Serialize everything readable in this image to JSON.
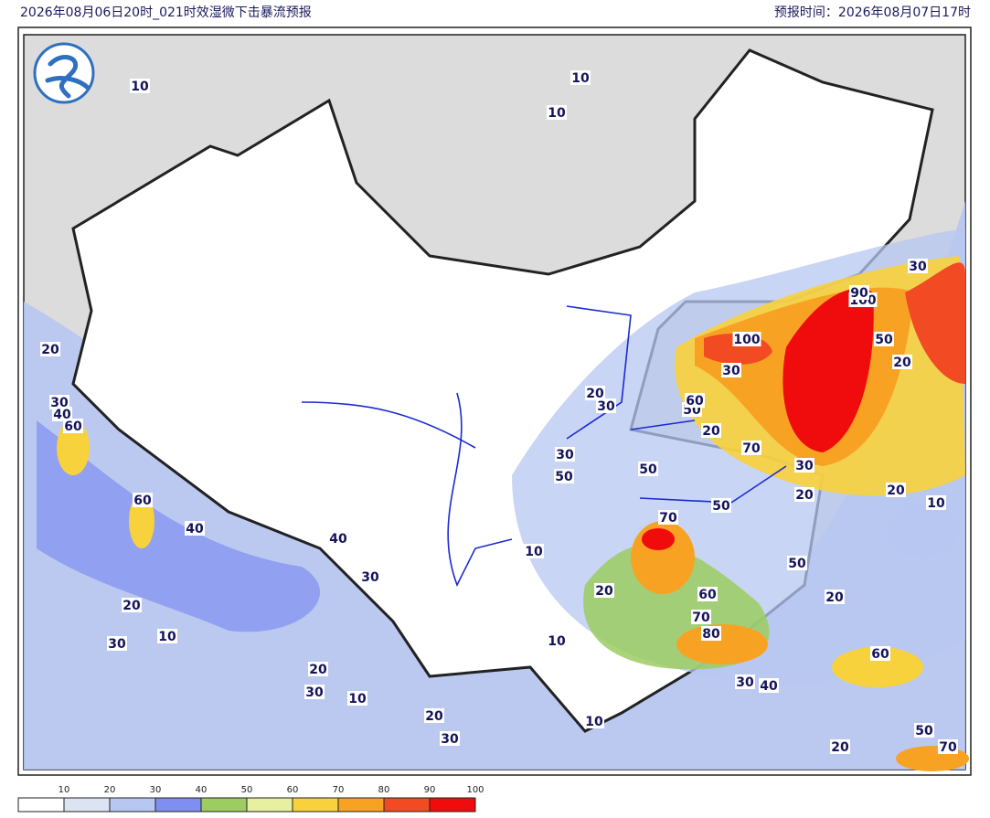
{
  "header": {
    "title": "2026年08月06日20时_021时效湿微下击暴流预报",
    "issue_time": "预报时间：2026年08月07日17时"
  },
  "map": {
    "contour_labels": [
      10,
      10,
      10,
      20,
      30,
      40,
      60,
      60,
      40,
      40,
      30,
      20,
      10,
      30,
      20,
      30,
      10,
      20,
      30,
      10,
      10,
      10,
      20,
      20,
      30,
      30,
      50,
      50,
      70,
      50,
      60,
      70,
      80,
      30,
      40,
      50,
      20,
      60,
      50,
      70,
      20,
      10,
      20,
      20,
      30,
      70,
      20,
      50,
      60,
      30,
      100,
      100,
      90,
      50,
      20,
      30
    ]
  },
  "legend": {
    "ticks": [
      10,
      20,
      30,
      40,
      50,
      60,
      70,
      80,
      90,
      100
    ],
    "colors": [
      "#ffffff",
      "#dbe4f0",
      "#b7c7f2",
      "#7f8ff0",
      "#9ccc62",
      "#e6f0a0",
      "#f8d23c",
      "#f8a224",
      "#f24a22",
      "#f00c0c"
    ]
  }
}
